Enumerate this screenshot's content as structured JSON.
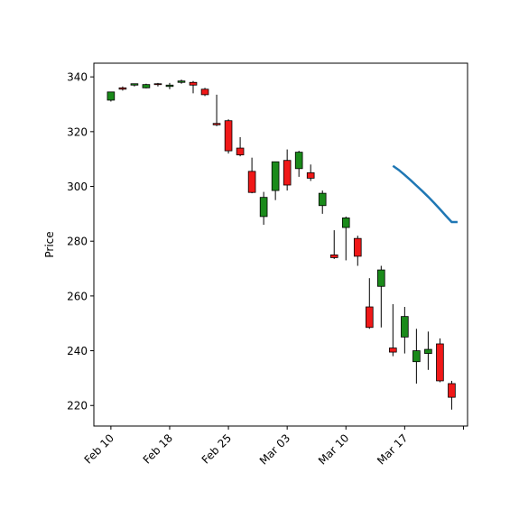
{
  "chart_data": {
    "type": "candlestick",
    "title": "",
    "xlabel": "",
    "ylabel": "Price",
    "ylim": [
      212.5,
      345
    ],
    "yticks": [
      220,
      240,
      260,
      280,
      300,
      320,
      340
    ],
    "xticks": [
      {
        "index": 0,
        "label": "Feb 10"
      },
      {
        "index": 5,
        "label": "Feb 18"
      },
      {
        "index": 10,
        "label": "Feb 25"
      },
      {
        "index": 15,
        "label": "Mar 03"
      },
      {
        "index": 20,
        "label": "Mar 10"
      },
      {
        "index": 25,
        "label": "Mar 17"
      },
      {
        "index": 30,
        "label": ""
      }
    ],
    "up_color": "#1a8a1a",
    "down_color": "#f01818",
    "edge_color": "#000000",
    "candles": [
      {
        "open": 331.5,
        "high": 334.5,
        "low": 331.0,
        "close": 334.5
      },
      {
        "open": 336.0,
        "high": 336.5,
        "low": 335.0,
        "close": 335.5
      },
      {
        "open": 337.0,
        "high": 337.5,
        "low": 336.5,
        "close": 337.5
      },
      {
        "open": 336.0,
        "high": 337.5,
        "low": 335.8,
        "close": 337.2
      },
      {
        "open": 337.5,
        "high": 337.8,
        "low": 336.5,
        "close": 337.3
      },
      {
        "open": 336.5,
        "high": 337.8,
        "low": 335.5,
        "close": 337.0
      },
      {
        "open": 338.0,
        "high": 339.0,
        "low": 337.5,
        "close": 338.5
      },
      {
        "open": 338.0,
        "high": 338.5,
        "low": 334.0,
        "close": 337.0
      },
      {
        "open": 335.5,
        "high": 336.0,
        "low": 333.0,
        "close": 333.5
      },
      {
        "open": 323.0,
        "high": 333.5,
        "low": 322.0,
        "close": 322.5
      },
      {
        "open": 324.0,
        "high": 324.5,
        "low": 312.0,
        "close": 313.0
      },
      {
        "open": 314.0,
        "high": 318.0,
        "low": 311.0,
        "close": 311.5
      },
      {
        "open": 305.5,
        "high": 310.5,
        "low": 297.5,
        "close": 297.8
      },
      {
        "open": 289.0,
        "high": 298.0,
        "low": 286.0,
        "close": 296.0
      },
      {
        "open": 298.5,
        "high": 309.0,
        "low": 295.0,
        "close": 309.0
      },
      {
        "open": 309.5,
        "high": 313.5,
        "low": 298.5,
        "close": 300.5
      },
      {
        "open": 306.5,
        "high": 313.0,
        "low": 303.5,
        "close": 312.5
      },
      {
        "open": 305.0,
        "high": 308.0,
        "low": 302.0,
        "close": 303.0
      },
      {
        "open": 293.0,
        "high": 298.5,
        "low": 290.0,
        "close": 297.5
      },
      {
        "open": 275.0,
        "high": 284.0,
        "low": 273.5,
        "close": 274.0
      },
      {
        "open": 285.0,
        "high": 289.0,
        "low": 273.0,
        "close": 288.5
      },
      {
        "open": 281.0,
        "high": 282.0,
        "low": 271.0,
        "close": 274.5
      },
      {
        "open": 256.0,
        "high": 266.5,
        "low": 248.0,
        "close": 248.5
      },
      {
        "open": 263.5,
        "high": 271.0,
        "low": 248.5,
        "close": 269.5
      },
      {
        "open": 241.0,
        "high": 257.0,
        "low": 238.0,
        "close": 239.5
      },
      {
        "open": 245.0,
        "high": 256.0,
        "low": 239.0,
        "close": 252.5
      },
      {
        "open": 236.0,
        "high": 248.0,
        "low": 228.0,
        "close": 240.0
      },
      {
        "open": 239.0,
        "high": 247.0,
        "low": 233.0,
        "close": 240.5
      },
      {
        "open": 242.5,
        "high": 244.5,
        "low": 228.5,
        "close": 229.0
      },
      {
        "open": 228.0,
        "high": 229.0,
        "low": 218.5,
        "close": 223.0
      }
    ],
    "line_series": {
      "name": "trend",
      "color": "#1f77b4",
      "x": [
        24,
        24.5,
        25,
        25.5,
        26,
        26.5,
        27,
        27.5,
        28,
        28.5,
        29,
        29.5
      ],
      "y": [
        307.5,
        306.0,
        304.2,
        302.3,
        300.3,
        298.3,
        296.2,
        294.0,
        291.7,
        289.3,
        287.0,
        287.0
      ]
    }
  }
}
